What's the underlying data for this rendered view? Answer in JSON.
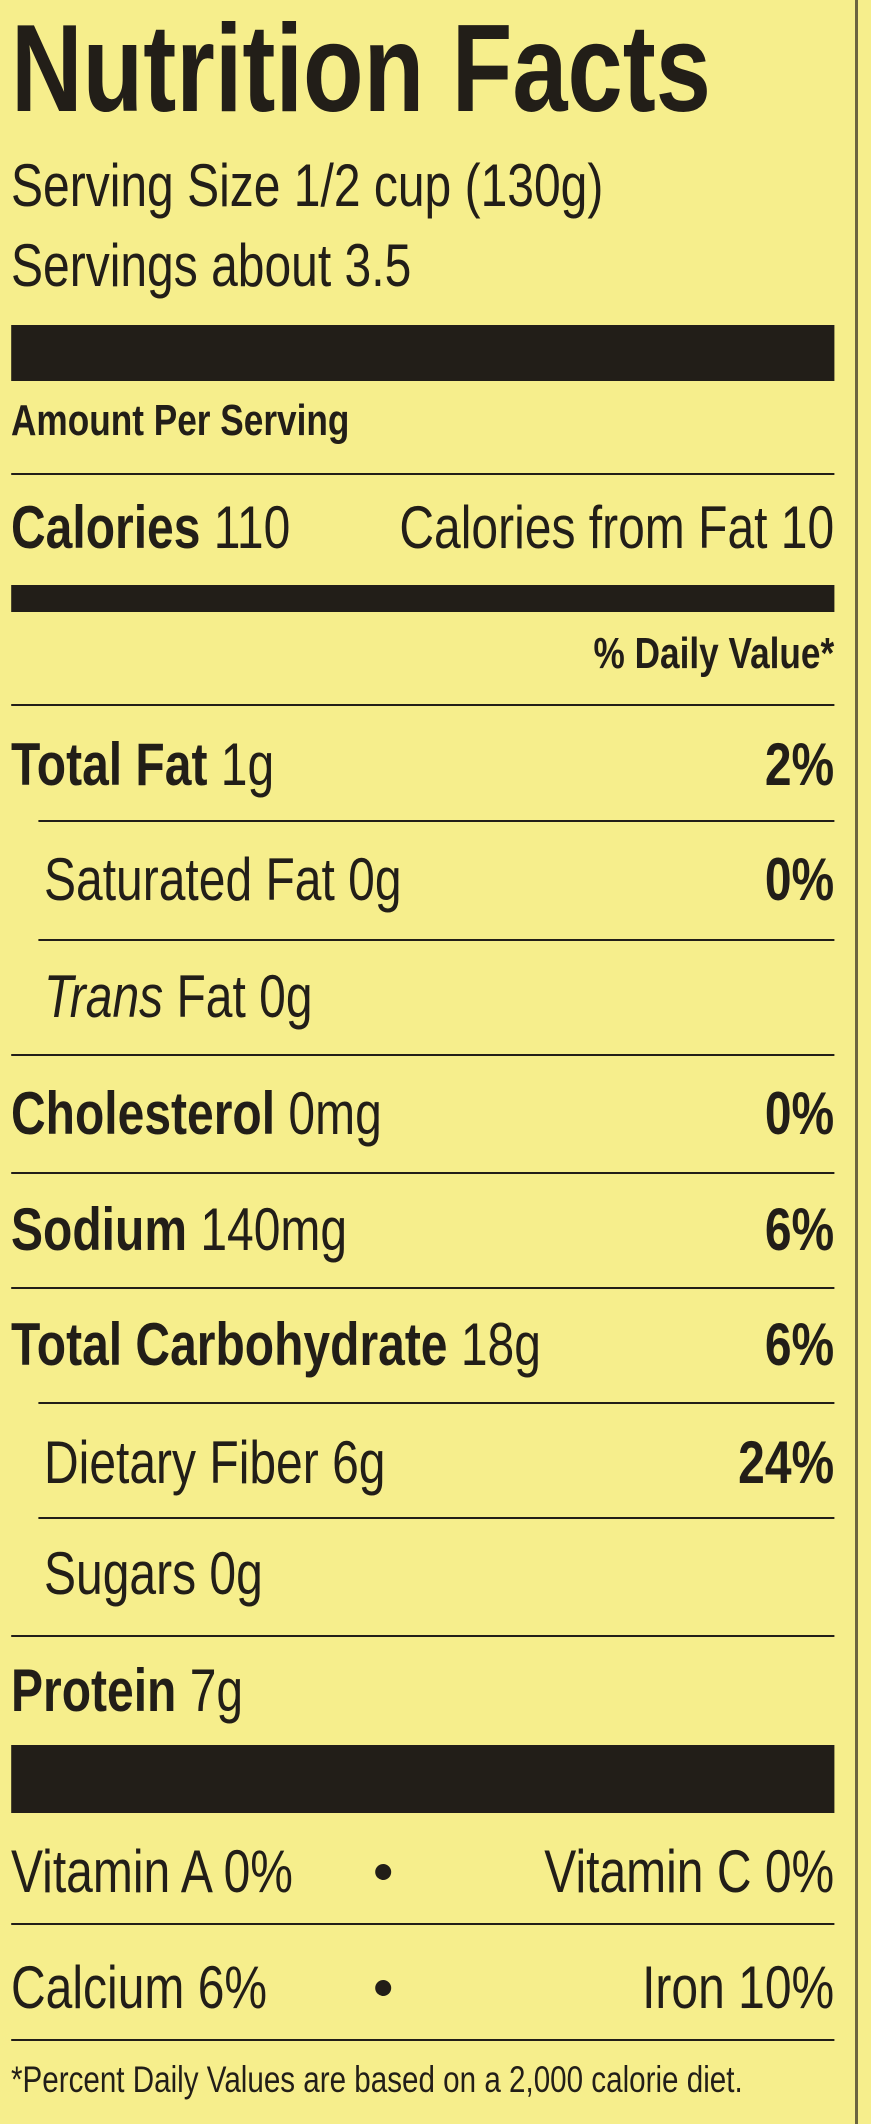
{
  "title": "Nutrition Facts",
  "serving_size": "Serving Size 1/2 cup (130g)",
  "servings": "Servings about 3.5",
  "amount_per_serving": "Amount Per Serving",
  "calories": {
    "label": "Calories",
    "value": "110",
    "from_fat": "Calories from Fat 10"
  },
  "daily_value_header": "% Daily Value*",
  "nutrients": [
    {
      "label": "Total Fat",
      "amount": "1g",
      "dv": "2%",
      "bold": true,
      "indent": false
    },
    {
      "label": "Saturated Fat",
      "amount": "0g",
      "dv": "0%",
      "bold": false,
      "indent": true
    },
    {
      "label_italic": "Trans",
      "label": "Fat",
      "amount": "0g",
      "bold": false,
      "indent": true
    },
    {
      "label": "Cholesterol",
      "amount": "0mg",
      "dv": "0%",
      "bold": true,
      "indent": false
    },
    {
      "label": "Sodium",
      "amount": "140mg",
      "dv": "6%",
      "bold": true,
      "indent": false
    },
    {
      "label": "Total Carbohydrate",
      "amount": "18g",
      "dv": "6%",
      "bold": true,
      "indent": false
    },
    {
      "label": "Dietary Fiber",
      "amount": "6g",
      "dv": "24%",
      "bold": false,
      "indent": true
    },
    {
      "label": "Sugars",
      "amount": "0g",
      "bold": false,
      "indent": true
    },
    {
      "label": "Protein",
      "amount": "7g",
      "bold": true,
      "indent": false
    }
  ],
  "vitamins": [
    [
      "Vitamin A 0%",
      "Vitamin C 0%"
    ],
    [
      "Calcium 6%",
      "Iron 10%"
    ]
  ],
  "footnote": "*Percent Daily Values are based on a 2,000 calorie diet."
}
